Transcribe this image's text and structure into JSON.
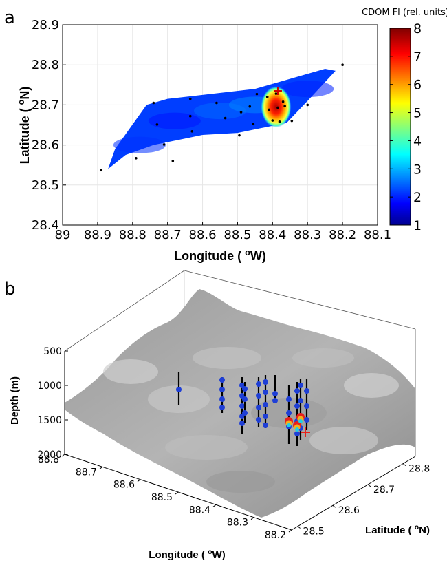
{
  "chart_data": [
    {
      "panel": "a",
      "type": "heatmap",
      "xlabel": "Longitude (oW)",
      "ylabel": "Latitude (oN)",
      "x_tick_labels": [
        "89",
        "88.9",
        "88.8",
        "88.7",
        "88.6",
        "88.5",
        "88.4",
        "88.3",
        "88.2",
        "88.1"
      ],
      "y_tick_labels": [
        "28.4",
        "28.5",
        "28.6",
        "28.7",
        "28.8",
        "28.9"
      ],
      "xlim": [
        89,
        88.1
      ],
      "ylim": [
        28.4,
        28.9
      ],
      "grid": true,
      "colorbar": {
        "title": "CDOM Fl (rel. units)",
        "range": [
          1,
          8
        ],
        "tick_labels": [
          "1",
          "2",
          "3",
          "4",
          "5",
          "6",
          "7",
          "8"
        ],
        "colormap": "jet"
      },
      "stations": [
        {
          "lon": 88.89,
          "lat": 28.537
        },
        {
          "lon": 88.79,
          "lat": 28.567
        },
        {
          "lon": 88.74,
          "lat": 28.705
        },
        {
          "lon": 88.73,
          "lat": 28.651
        },
        {
          "lon": 88.71,
          "lat": 28.601
        },
        {
          "lon": 88.685,
          "lat": 28.56
        },
        {
          "lon": 88.635,
          "lat": 28.715
        },
        {
          "lon": 88.635,
          "lat": 28.672
        },
        {
          "lon": 88.63,
          "lat": 28.634
        },
        {
          "lon": 88.56,
          "lat": 28.705
        },
        {
          "lon": 88.535,
          "lat": 28.667
        },
        {
          "lon": 88.495,
          "lat": 28.624
        },
        {
          "lon": 88.49,
          "lat": 28.682
        },
        {
          "lon": 88.465,
          "lat": 28.696
        },
        {
          "lon": 88.455,
          "lat": 28.652
        },
        {
          "lon": 88.445,
          "lat": 28.727
        },
        {
          "lon": 88.415,
          "lat": 28.72
        },
        {
          "lon": 88.41,
          "lat": 28.688
        },
        {
          "lon": 88.4,
          "lat": 28.661
        },
        {
          "lon": 88.39,
          "lat": 28.728
        },
        {
          "lon": 88.385,
          "lat": 28.693
        },
        {
          "lon": 88.37,
          "lat": 28.708
        },
        {
          "lon": 88.365,
          "lat": 28.697
        },
        {
          "lon": 88.38,
          "lat": 28.658
        },
        {
          "lon": 88.345,
          "lat": 28.66
        },
        {
          "lon": 88.3,
          "lat": 28.7
        },
        {
          "lon": 88.2,
          "lat": 28.8
        }
      ],
      "high_value_center": {
        "lon": 88.39,
        "lat": 28.695,
        "value": 8
      },
      "background_value": 2.3,
      "marker": {
        "lon": 88.385,
        "lat": 28.735,
        "symbol": "+"
      }
    },
    {
      "panel": "b",
      "type": "scatter",
      "subtype": "3d-surface-with-profiles",
      "xlabel": "Longitude (oW)",
      "ylabel": "Latitude (oN)",
      "zlabel": "Depth (m)",
      "x_tick_labels": [
        "88.8",
        "88.7",
        "88.6",
        "88.5",
        "88.4",
        "88.3",
        "88.2"
      ],
      "y_tick_labels": [
        "28.5",
        "28.6",
        "28.7",
        "28.8"
      ],
      "z_tick_labels": [
        "500",
        "1000",
        "1500",
        "2000"
      ],
      "zlim": [
        500,
        2000
      ],
      "surface_color": "#a9a9a9",
      "profile_color": "#000000",
      "point_color": "#1f3fd6",
      "high_point_colors": [
        "#e8201a",
        "#f2b01e",
        "#1ed0e8"
      ],
      "marker": {
        "symbol": "+",
        "color": "#e8201a"
      }
    }
  ]
}
